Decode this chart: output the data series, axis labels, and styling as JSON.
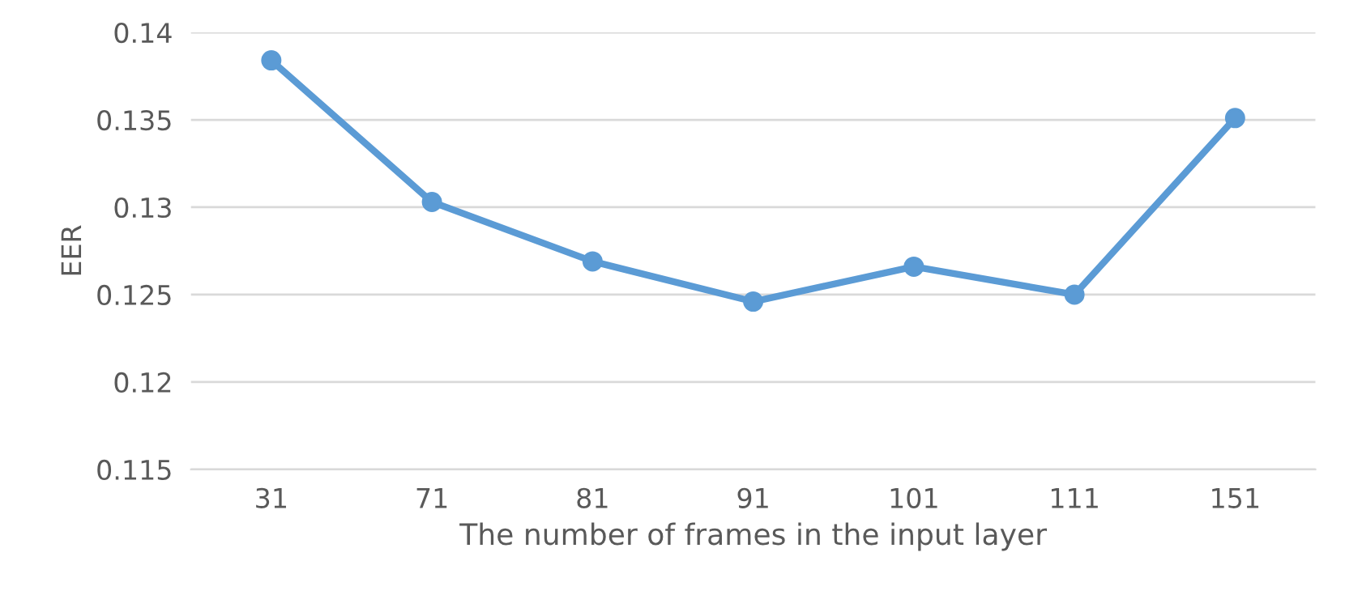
{
  "chart_data": {
    "type": "line",
    "xlabel": "The number of frames in the input layer",
    "ylabel": "EER",
    "categories": [
      "31",
      "71",
      "81",
      "91",
      "101",
      "111",
      "151"
    ],
    "series": [
      {
        "color": "#5b9bd5",
        "values": [
          0.1384,
          0.1303,
          0.1269,
          0.1246,
          0.1266,
          0.125,
          0.1351
        ]
      }
    ],
    "ylim": [
      0.115,
      0.14
    ],
    "yticks": [
      0.115,
      0.12,
      0.125,
      0.13,
      0.135,
      0.14
    ],
    "grid": "y",
    "marker": "circle",
    "line_style": "solid"
  }
}
